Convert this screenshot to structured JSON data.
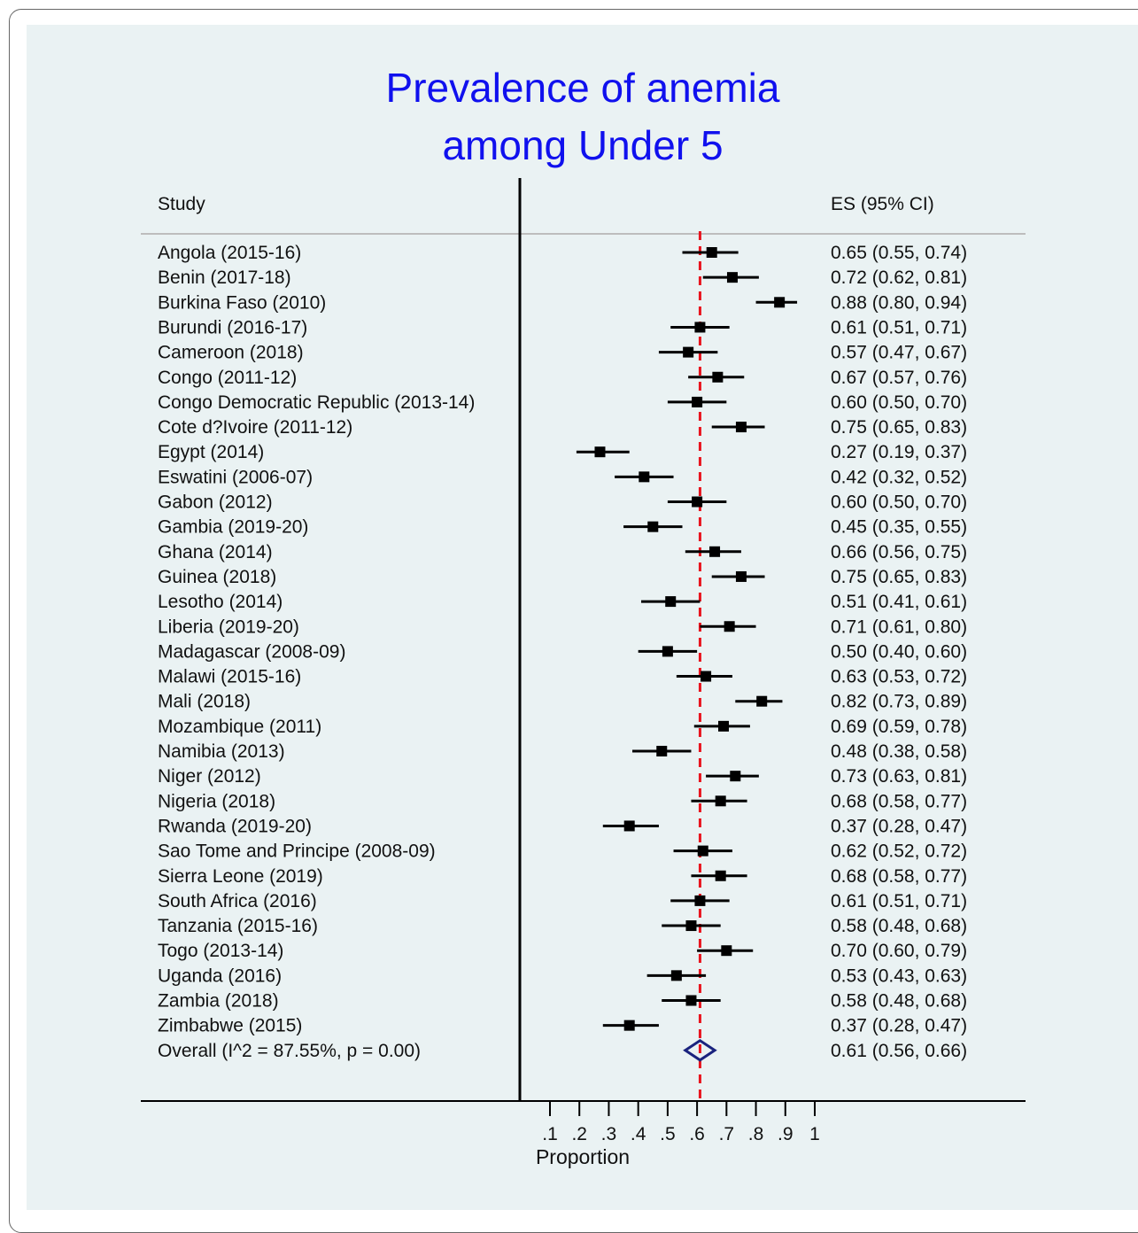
{
  "chart_data": {
    "type": "forest",
    "title": [
      "Prevalence of anemia",
      "among Under 5"
    ],
    "header_study": "Study",
    "header_es": "ES (95% CI)",
    "xlabel": "Proportion",
    "xlim": [
      0.1,
      1.0
    ],
    "xticks": [
      0.1,
      0.2,
      0.3,
      0.4,
      0.5,
      0.6,
      0.7,
      0.8,
      0.9,
      1.0
    ],
    "xtick_labels": [
      ".1",
      ".2",
      ".3",
      ".4",
      ".5",
      ".6",
      ".7",
      ".8",
      ".9",
      "1"
    ],
    "reference_line": 0.61,
    "colors": {
      "title": "#1010ee",
      "reference": "#e8141e",
      "diamond": "#1a237e",
      "marker": "#000000",
      "background": "#eaf2f3"
    },
    "studies": [
      {
        "label": "Angola (2015-16)",
        "es": 0.65,
        "lo": 0.55,
        "hi": 0.74,
        "text": "0.65 (0.55, 0.74)"
      },
      {
        "label": "Benin (2017-18)",
        "es": 0.72,
        "lo": 0.62,
        "hi": 0.81,
        "text": "0.72 (0.62, 0.81)"
      },
      {
        "label": "Burkina Faso (2010)",
        "es": 0.88,
        "lo": 0.8,
        "hi": 0.94,
        "text": "0.88 (0.80, 0.94)"
      },
      {
        "label": "Burundi (2016-17)",
        "es": 0.61,
        "lo": 0.51,
        "hi": 0.71,
        "text": "0.61 (0.51, 0.71)"
      },
      {
        "label": "Cameroon (2018)",
        "es": 0.57,
        "lo": 0.47,
        "hi": 0.67,
        "text": "0.57 (0.47, 0.67)"
      },
      {
        "label": "Congo (2011-12)",
        "es": 0.67,
        "lo": 0.57,
        "hi": 0.76,
        "text": "0.67 (0.57, 0.76)"
      },
      {
        "label": "Congo Democratic Republic (2013-14)",
        "es": 0.6,
        "lo": 0.5,
        "hi": 0.7,
        "text": "0.60 (0.50, 0.70)"
      },
      {
        "label": "Cote d?Ivoire (2011-12)",
        "es": 0.75,
        "lo": 0.65,
        "hi": 0.83,
        "text": "0.75 (0.65, 0.83)"
      },
      {
        "label": "Egypt (2014)",
        "es": 0.27,
        "lo": 0.19,
        "hi": 0.37,
        "text": "0.27 (0.19, 0.37)"
      },
      {
        "label": "Eswatini (2006-07)",
        "es": 0.42,
        "lo": 0.32,
        "hi": 0.52,
        "text": "0.42 (0.32, 0.52)"
      },
      {
        "label": "Gabon (2012)",
        "es": 0.6,
        "lo": 0.5,
        "hi": 0.7,
        "text": "0.60 (0.50, 0.70)"
      },
      {
        "label": "Gambia (2019-20)",
        "es": 0.45,
        "lo": 0.35,
        "hi": 0.55,
        "text": "0.45 (0.35, 0.55)"
      },
      {
        "label": "Ghana (2014)",
        "es": 0.66,
        "lo": 0.56,
        "hi": 0.75,
        "text": "0.66 (0.56, 0.75)"
      },
      {
        "label": "Guinea (2018)",
        "es": 0.75,
        "lo": 0.65,
        "hi": 0.83,
        "text": "0.75 (0.65, 0.83)"
      },
      {
        "label": "Lesotho (2014)",
        "es": 0.51,
        "lo": 0.41,
        "hi": 0.61,
        "text": "0.51 (0.41, 0.61)"
      },
      {
        "label": "Liberia (2019-20)",
        "es": 0.71,
        "lo": 0.61,
        "hi": 0.8,
        "text": "0.71 (0.61, 0.80)"
      },
      {
        "label": "Madagascar (2008-09)",
        "es": 0.5,
        "lo": 0.4,
        "hi": 0.6,
        "text": "0.50 (0.40, 0.60)"
      },
      {
        "label": "Malawi (2015-16)",
        "es": 0.63,
        "lo": 0.53,
        "hi": 0.72,
        "text": "0.63 (0.53, 0.72)"
      },
      {
        "label": "Mali (2018)",
        "es": 0.82,
        "lo": 0.73,
        "hi": 0.89,
        "text": "0.82 (0.73, 0.89)"
      },
      {
        "label": "Mozambique (2011)",
        "es": 0.69,
        "lo": 0.59,
        "hi": 0.78,
        "text": "0.69 (0.59, 0.78)"
      },
      {
        "label": "Namibia (2013)",
        "es": 0.48,
        "lo": 0.38,
        "hi": 0.58,
        "text": "0.48 (0.38, 0.58)"
      },
      {
        "label": "Niger (2012)",
        "es": 0.73,
        "lo": 0.63,
        "hi": 0.81,
        "text": "0.73 (0.63, 0.81)"
      },
      {
        "label": "Nigeria (2018)",
        "es": 0.68,
        "lo": 0.58,
        "hi": 0.77,
        "text": "0.68 (0.58, 0.77)"
      },
      {
        "label": "Rwanda (2019-20)",
        "es": 0.37,
        "lo": 0.28,
        "hi": 0.47,
        "text": "0.37 (0.28, 0.47)"
      },
      {
        "label": "Sao Tome and Principe (2008-09)",
        "es": 0.62,
        "lo": 0.52,
        "hi": 0.72,
        "text": "0.62 (0.52, 0.72)"
      },
      {
        "label": "Sierra Leone (2019)",
        "es": 0.68,
        "lo": 0.58,
        "hi": 0.77,
        "text": "0.68 (0.58, 0.77)"
      },
      {
        "label": "South Africa (2016)",
        "es": 0.61,
        "lo": 0.51,
        "hi": 0.71,
        "text": "0.61 (0.51, 0.71)"
      },
      {
        "label": "Tanzania (2015-16)",
        "es": 0.58,
        "lo": 0.48,
        "hi": 0.68,
        "text": "0.58 (0.48, 0.68)"
      },
      {
        "label": "Togo (2013-14)",
        "es": 0.7,
        "lo": 0.6,
        "hi": 0.79,
        "text": "0.70 (0.60, 0.79)"
      },
      {
        "label": "Uganda (2016)",
        "es": 0.53,
        "lo": 0.43,
        "hi": 0.63,
        "text": "0.53 (0.43, 0.63)"
      },
      {
        "label": "Zambia (2018)",
        "es": 0.58,
        "lo": 0.48,
        "hi": 0.68,
        "text": "0.58 (0.48, 0.68)"
      },
      {
        "label": "Zimbabwe (2015)",
        "es": 0.37,
        "lo": 0.28,
        "hi": 0.47,
        "text": "0.37 (0.28, 0.47)"
      }
    ],
    "overall": {
      "label": "Overall  (I^2 = 87.55%, p = 0.00)",
      "es": 0.61,
      "lo": 0.56,
      "hi": 0.66,
      "text": "0.61 (0.56, 0.66)"
    }
  }
}
